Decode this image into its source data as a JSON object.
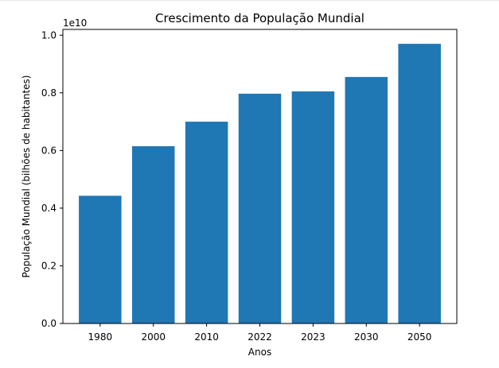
{
  "chart_data": {
    "type": "bar",
    "title": "Crescimento da População Mundial",
    "xlabel": "Anos",
    "ylabel": "População Mundial (bilhões de habitantes)",
    "offset_label": "1e10",
    "categories": [
      "1980",
      "2000",
      "2010",
      "2022",
      "2023",
      "2030",
      "2050"
    ],
    "values": [
      4430000000.0,
      6150000000.0,
      7000000000.0,
      7970000000.0,
      8050000000.0,
      8550000000.0,
      9700000000.0
    ],
    "ylim": [
      0,
      10200000000
    ],
    "yticks": [
      0,
      2000000000,
      4000000000,
      6000000000,
      8000000000,
      10000000000
    ],
    "ytick_labels": [
      "0.0",
      "0.2",
      "0.4",
      "0.6",
      "0.8",
      "1.0"
    ],
    "bar_color": "#1f77b4",
    "grid": false,
    "legend": "none"
  }
}
